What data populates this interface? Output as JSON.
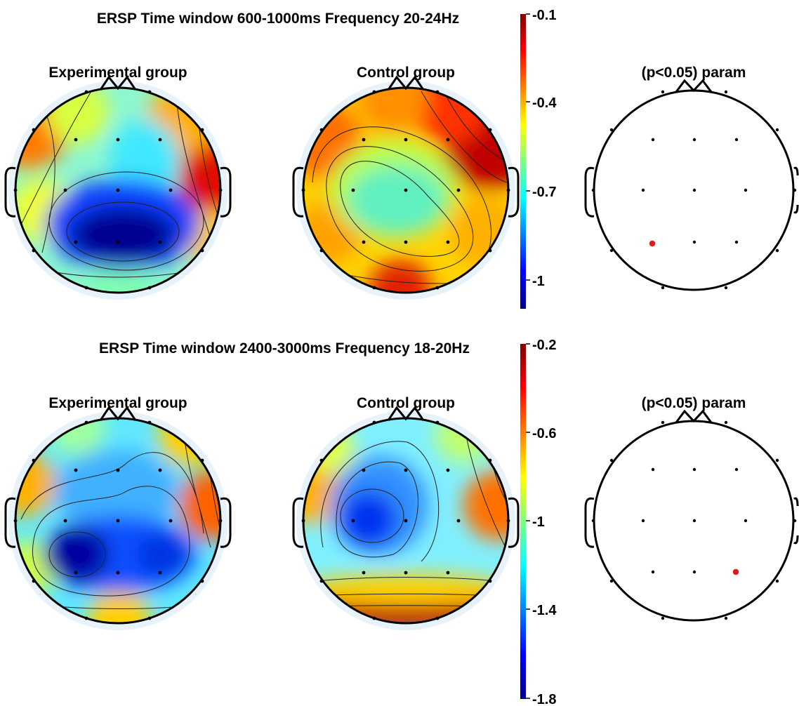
{
  "panels": [
    {
      "title": "ERSP Time window 600-1000ms Frequency 20-24Hz",
      "experimental_label": "Experimental group",
      "control_label": "Control group",
      "stats_label": "(p<0.05) param",
      "colorbar_ticks": [
        "-0.1",
        "-0.4",
        "-0.7",
        "-1"
      ],
      "significant_electrode": "left-posterior"
    },
    {
      "title": "ERSP Time window 2400-3000ms Frequency 18-20Hz",
      "experimental_label": "Experimental group",
      "control_label": "Control group",
      "stats_label": "(p<0.05) param",
      "colorbar_ticks": [
        "-0.2",
        "-0.6",
        "-1",
        "-1.4",
        "-1.8"
      ],
      "significant_electrode": "right-posterior"
    }
  ],
  "colors": {
    "colormap": [
      "#00008f",
      "#0000ff",
      "#00ffff",
      "#ffff00",
      "#ff0000",
      "#800000"
    ],
    "significant_marker": "#e8151b"
  }
}
